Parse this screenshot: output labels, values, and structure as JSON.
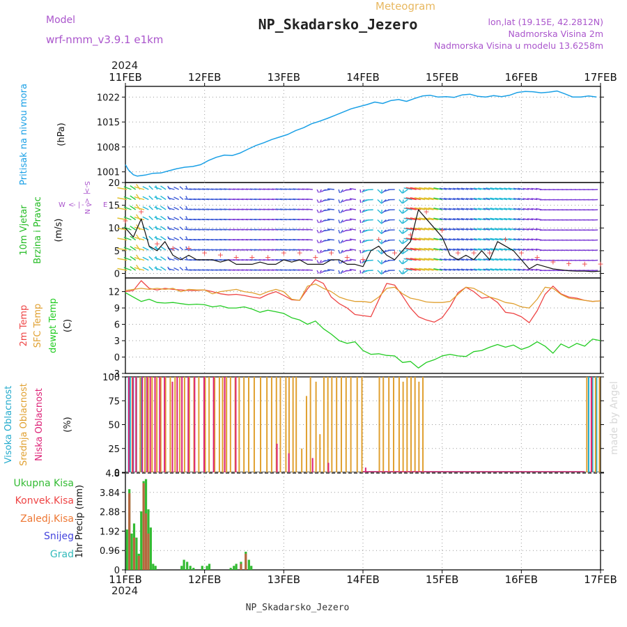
{
  "header": {
    "meteogram_label": "Meteogram",
    "station_title": "NP_Skadarsko_Jezero",
    "model_label": "Model",
    "model_name": "wrf-nmm_v3.9.1 e1km",
    "lonlat": "lon,lat (19.15E, 42.2812N)",
    "elevation": "Nadmorska Visina 2m",
    "model_elevation": "Nadmorska Visina u modelu 13.6258m",
    "footer_title": "NP_Skadarsko_Jezero",
    "credit": "made by Angel",
    "year": "2024",
    "compass": [
      "N",
      "<-",
      "|",
      "->",
      "S",
      "W",
      "<",
      "-",
      "|",
      "-",
      ">",
      "E"
    ]
  },
  "colors": {
    "pressure": "#1aa0e6",
    "wind_label": "#22bb22",
    "temp2m": "#ee4444",
    "sfc": "#e0a030",
    "dewpt": "#22cc22",
    "high_cloud": "#22aacc",
    "mid_cloud": "#e0a030",
    "low_cloud": "#dd2277",
    "precip_total": "#33bb33",
    "convective": "#ee4444",
    "freezing": "#ee7733",
    "snow": "#4444dd",
    "hail": "#33bbbb",
    "header_purple": "#aa55cc",
    "meteogram_orange": "#e8b860"
  },
  "chart_data": [
    {
      "type": "line",
      "id": "pressure",
      "ylabel_lines": [
        "Pritisak na nivou mora",
        "(hPa)"
      ],
      "x_days": [
        0,
        0.04,
        0.1,
        0.15,
        0.25,
        0.35,
        0.45,
        0.55,
        0.65,
        0.75,
        0.85,
        0.95,
        1.05,
        1.15,
        1.25,
        1.35,
        1.45,
        1.55,
        1.65,
        1.75,
        1.85,
        1.95,
        2.05,
        2.15,
        2.25,
        2.35,
        2.45,
        2.55,
        2.65,
        2.75,
        2.85,
        2.95,
        3.05,
        3.15,
        3.25,
        3.35,
        3.45,
        3.55,
        3.65,
        3.75,
        3.85,
        3.95,
        4.05,
        4.15,
        4.25,
        4.35,
        4.45,
        4.55,
        4.65,
        4.75,
        4.85,
        4.95,
        5.05,
        5.15,
        5.25,
        5.35,
        5.45,
        5.55,
        5.65,
        5.75,
        5.85,
        5.95
      ],
      "values": [
        1003,
        1001.5,
        1000.2,
        999.8,
        1000.1,
        1000.6,
        1000.7,
        1001.3,
        1001.9,
        1002.3,
        1002.5,
        1003.0,
        1004.2,
        1005.1,
        1005.7,
        1005.6,
        1006.3,
        1007.4,
        1008.4,
        1009.2,
        1010.1,
        1010.8,
        1011.5,
        1012.6,
        1013.4,
        1014.5,
        1015.2,
        1016.0,
        1016.9,
        1017.8,
        1018.7,
        1019.3,
        1019.9,
        1020.6,
        1020.2,
        1021.0,
        1021.3,
        1020.8,
        1021.6,
        1022.3,
        1022.5,
        1022.0,
        1022.1,
        1021.9,
        1022.6,
        1022.8,
        1022.2,
        1022.0,
        1022.4,
        1022.1,
        1022.5,
        1023.3,
        1023.6,
        1023.5,
        1023.2,
        1023.4,
        1023.7,
        1022.9,
        1022.0,
        1022.0,
        1022.3,
        1022.0
      ],
      "yticks": [
        1001,
        1008,
        1015,
        1022
      ],
      "ylim": [
        998,
        1025
      ]
    },
    {
      "type": "line",
      "id": "wind",
      "ylabel_lines": [
        "10m Vjetar",
        "Brzina i Pravac",
        "(m/s)"
      ],
      "x_days": [
        0,
        0.1,
        0.2,
        0.3,
        0.4,
        0.5,
        0.6,
        0.7,
        0.8,
        0.9,
        1.0,
        1.1,
        1.2,
        1.3,
        1.4,
        1.5,
        1.6,
        1.7,
        1.8,
        1.9,
        2.0,
        2.1,
        2.2,
        2.3,
        2.4,
        2.5,
        2.6,
        2.7,
        2.8,
        2.9,
        3.0,
        3.1,
        3.2,
        3.3,
        3.4,
        3.5,
        3.6,
        3.7,
        3.8,
        3.9,
        4.0,
        4.1,
        4.2,
        4.3,
        4.4,
        4.5,
        4.6,
        4.7,
        4.8,
        4.9,
        5.0,
        5.1,
        5.2,
        5.3,
        5.4,
        5.5,
        5.6,
        5.7,
        5.8,
        5.9,
        6.0
      ],
      "values": [
        10,
        8,
        12,
        6,
        5,
        7,
        4,
        3,
        4,
        3,
        3,
        3,
        2.5,
        3,
        2,
        2,
        2,
        2.5,
        2,
        2,
        3,
        2.5,
        3,
        2,
        2,
        2,
        3,
        3,
        2,
        2,
        1.5,
        5,
        6,
        4,
        3,
        5,
        7,
        14,
        12,
        10,
        8,
        4,
        3,
        4,
        3,
        5,
        3,
        7,
        6,
        5,
        3,
        1,
        2,
        1.5,
        1,
        0.8,
        0.6,
        0.5,
        0.5,
        0.4,
        0.5
      ],
      "yticks": [
        0,
        5,
        10,
        15,
        20
      ],
      "ylim": [
        -1,
        20
      ]
    },
    {
      "type": "line",
      "id": "temperature",
      "ylabel_lines": [
        "2m Temp",
        "SFC Temp",
        "dewpt Temp",
        "(C)"
      ],
      "x_days": [
        0,
        0.1,
        0.2,
        0.3,
        0.4,
        0.5,
        0.6,
        0.7,
        0.8,
        0.9,
        1.0,
        1.1,
        1.2,
        1.3,
        1.4,
        1.5,
        1.6,
        1.7,
        1.8,
        1.9,
        2.0,
        2.1,
        2.2,
        2.3,
        2.4,
        2.5,
        2.6,
        2.7,
        2.8,
        2.9,
        3.0,
        3.1,
        3.2,
        3.3,
        3.4,
        3.5,
        3.6,
        3.7,
        3.8,
        3.9,
        4.0,
        4.1,
        4.2,
        4.3,
        4.4,
        4.5,
        4.6,
        4.7,
        4.8,
        4.9,
        5.0,
        5.1,
        5.2,
        5.3,
        5.4,
        5.5,
        5.6,
        5.7,
        5.8,
        5.9,
        6.0
      ],
      "series": [
        {
          "name": "2m Temp",
          "values": [
            12,
            12.2,
            14,
            12.6,
            12.3,
            12.6,
            12.4,
            12.3,
            12.2,
            12.2,
            12.3,
            12.0,
            11.6,
            11.4,
            11.5,
            11.3,
            11.0,
            10.8,
            11.5,
            12.0,
            11.3,
            10.5,
            10.4,
            12.5,
            14.2,
            13.5,
            11.0,
            9.8,
            9.0,
            7.8,
            7.6,
            7.4,
            10.5,
            13.5,
            13.2,
            11.2,
            9.0,
            7.4,
            6.8,
            6.4,
            7.2,
            9.2,
            11.8,
            12.8,
            12.0,
            10.8,
            11.0,
            10.0,
            8.2,
            8.0,
            7.4,
            6.3,
            8.5,
            11.5,
            13.0,
            11.6,
            11.0,
            10.8,
            10.4,
            10.2,
            10.3
          ]
        },
        {
          "name": "SFC Temp",
          "values": [
            12.2,
            12.4,
            12.6,
            12.4,
            12.6,
            12.4,
            12.6,
            12.0,
            12.4,
            12.3,
            12.3,
            11.6,
            12.0,
            12.2,
            12.4,
            12.0,
            11.8,
            11.4,
            12.0,
            12.4,
            12.0,
            10.6,
            10.4,
            13.0,
            13.4,
            12.6,
            12.0,
            11.0,
            10.5,
            10.2,
            10.2,
            10.0,
            11.0,
            12.6,
            12.8,
            11.6,
            10.8,
            10.5,
            10.1,
            10.0,
            10.0,
            10.2,
            11.5,
            12.8,
            12.6,
            11.8,
            11.0,
            10.6,
            10.0,
            9.8,
            9.2,
            9.0,
            10.6,
            12.8,
            12.6,
            11.5,
            10.8,
            10.6,
            10.4,
            10.2,
            10.3
          ]
        },
        {
          "name": "dewpt Temp",
          "values": [
            11.8,
            11.0,
            10.2,
            10.6,
            10.0,
            9.9,
            10.0,
            9.8,
            9.6,
            9.7,
            9.6,
            9.2,
            9.4,
            9.0,
            9.0,
            9.2,
            8.8,
            8.2,
            8.6,
            8.3,
            8.0,
            7.2,
            6.8,
            6.0,
            6.6,
            5.2,
            4.2,
            3.0,
            2.5,
            2.8,
            1.2,
            0.5,
            0.6,
            0.3,
            0.2,
            -1.0,
            -0.8,
            -2.0,
            -1.0,
            -0.5,
            0.2,
            0.5,
            0.2,
            0.1,
            1.0,
            1.2,
            1.8,
            2.3,
            1.8,
            2.2,
            1.4,
            1.9,
            2.8,
            2.0,
            0.7,
            2.4,
            1.7,
            2.5,
            2.0,
            3.3,
            3.0
          ]
        }
      ],
      "yticks": [
        -3,
        0,
        3,
        6,
        9,
        12
      ],
      "ylim": [
        -3,
        14.5
      ]
    },
    {
      "type": "bar",
      "id": "cloud",
      "ylabel_lines": [
        "Visoka Oblacnost",
        "Srednja Oblacnost",
        "Niska Oblacnost",
        "(%)"
      ],
      "series": [
        {
          "name": "Visoka Oblacnost",
          "x_days": [
            0.04,
            0.06,
            0.1,
            0.14,
            0.2,
            0.25,
            5.85,
            5.9,
            5.95
          ],
          "values": [
            100,
            100,
            100,
            100,
            100,
            100,
            100,
            100,
            100
          ]
        },
        {
          "name": "Srednja Oblacnost",
          "x_days": [
            0.08,
            0.13,
            0.18,
            0.24,
            0.28,
            0.33,
            0.39,
            0.44,
            0.5,
            0.56,
            0.62,
            0.68,
            0.74,
            0.8,
            0.86,
            0.92,
            1.0,
            1.05,
            1.12,
            1.18,
            1.22,
            1.27,
            1.32,
            1.38,
            1.43,
            1.49,
            1.55,
            1.62,
            1.7,
            1.78,
            1.84,
            1.9,
            1.95,
            2.02,
            2.06,
            2.11,
            2.15,
            2.22,
            2.28,
            2.33,
            2.4,
            2.45,
            2.5,
            2.55,
            2.6,
            2.66,
            2.72,
            2.78,
            2.84,
            2.92,
            2.98,
            3.2,
            3.25,
            3.32,
            3.38,
            3.45,
            3.5,
            3.55,
            3.6,
            3.65,
            3.7,
            3.75,
            5.82,
            5.88,
            5.93,
            5.98
          ],
          "values": [
            100,
            100,
            100,
            100,
            100,
            100,
            100,
            100,
            100,
            100,
            100,
            100,
            100,
            100,
            100,
            100,
            100,
            100,
            100,
            100,
            100,
            100,
            100,
            100,
            100,
            100,
            100,
            100,
            100,
            100,
            100,
            100,
            100,
            100,
            100,
            100,
            100,
            25,
            80,
            100,
            95,
            40,
            100,
            100,
            100,
            100,
            100,
            100,
            100,
            100,
            100,
            100,
            100,
            100,
            100,
            100,
            95,
            100,
            100,
            100,
            95,
            100,
            100,
            100,
            100,
            100
          ]
        },
        {
          "name": "Niska Oblacnost",
          "x_days": [
            0.03,
            0.08,
            0.12,
            0.2,
            0.26,
            0.3,
            0.36,
            0.42,
            0.48,
            0.58,
            0.64,
            0.7,
            0.78,
            0.86,
            0.98,
            1.1,
            1.24,
            1.38,
            1.9,
            2.05,
            2.35,
            2.55,
            3.02,
            5.87
          ],
          "values": [
            100,
            100,
            100,
            100,
            100,
            100,
            100,
            100,
            100,
            95,
            100,
            100,
            100,
            100,
            100,
            100,
            100,
            100,
            30,
            20,
            15,
            10,
            5,
            100
          ]
        }
      ],
      "yticks": [
        0,
        25,
        50,
        75,
        100
      ],
      "ylim": [
        0,
        100
      ]
    },
    {
      "type": "bar",
      "id": "precip",
      "ylabel_lines": [
        "1hr Precip (mm)"
      ],
      "legend": [
        "Ukupna Kisa",
        "Konvek.Kisa",
        "Zaledj.Kisa",
        "Snijeg",
        "Grad"
      ],
      "series": [
        {
          "name": "Ukupna Kisa",
          "x_days": [
            0.02,
            0.05,
            0.08,
            0.11,
            0.14,
            0.17,
            0.2,
            0.23,
            0.26,
            0.29,
            0.32,
            0.35,
            0.38,
            0.71,
            0.74,
            0.78,
            0.82,
            0.86,
            0.97,
            1.03,
            1.06,
            1.33,
            1.37,
            1.4,
            1.46,
            1.52,
            1.56,
            1.59
          ],
          "values": [
            2.0,
            4.0,
            1.8,
            2.3,
            1.6,
            0.8,
            2.9,
            4.4,
            4.5,
            3.0,
            2.1,
            0.3,
            0.2,
            0.2,
            0.5,
            0.4,
            0.2,
            0.1,
            0.2,
            0.2,
            0.3,
            0.1,
            0.2,
            0.3,
            0.4,
            0.9,
            0.5,
            0.2
          ]
        },
        {
          "name": "Konvek.Kisa",
          "x_days": [
            0.05,
            0.11,
            0.17,
            0.23,
            0.26,
            0.29,
            1.46,
            1.52
          ],
          "values": [
            3.8,
            1.6,
            0.7,
            4.3,
            2.8,
            1.8,
            0.3,
            0.8
          ]
        }
      ],
      "yticks": [
        0,
        0.96,
        1.92,
        2.88,
        3.84,
        4.8
      ],
      "ylim": [
        0,
        4.8
      ]
    }
  ],
  "x_axis": {
    "day_labels": [
      "11FEB",
      "12FEB",
      "13FEB",
      "14FEB",
      "15FEB",
      "16FEB",
      "17FEB"
    ],
    "days": 6
  }
}
